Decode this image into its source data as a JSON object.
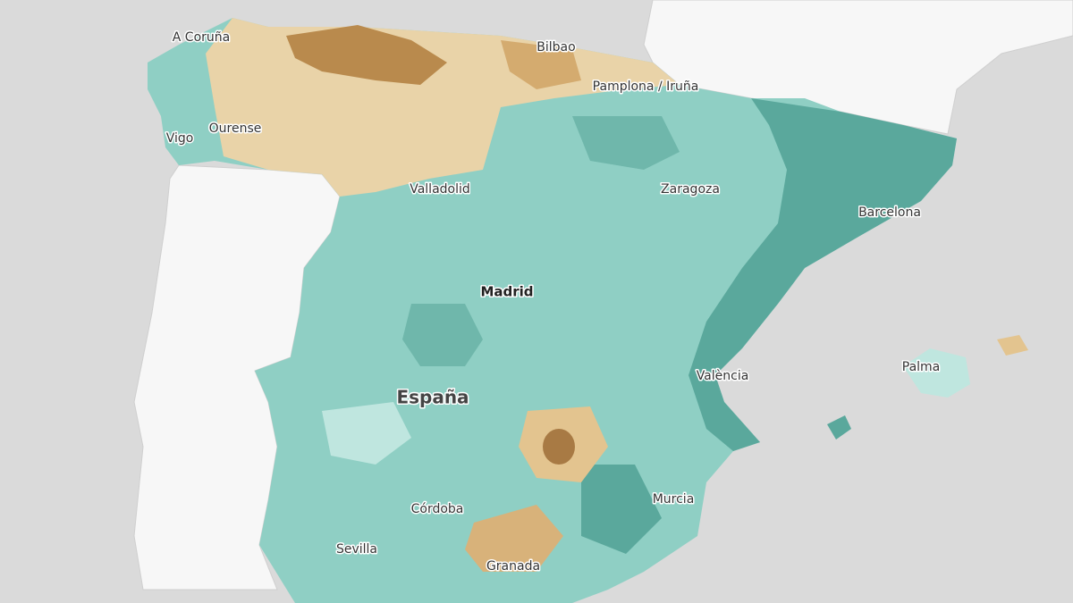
{
  "labels": {
    "a_coruna": "A Coruña",
    "bilbao": "Bilbao",
    "pamplona": "Pamplona / Iruña",
    "vigo": "Vigo",
    "ourense": "Ourense",
    "valladolid": "Valladolid",
    "zaragoza": "Zaragoza",
    "barcelona": "Barcelona",
    "madrid": "Madrid",
    "palma": "Palma",
    "valencia": "València",
    "espana": "España",
    "cordoba": "Córdoba",
    "murcia": "Murcia",
    "sevilla": "Sevilla",
    "granada": "Granada"
  }
}
